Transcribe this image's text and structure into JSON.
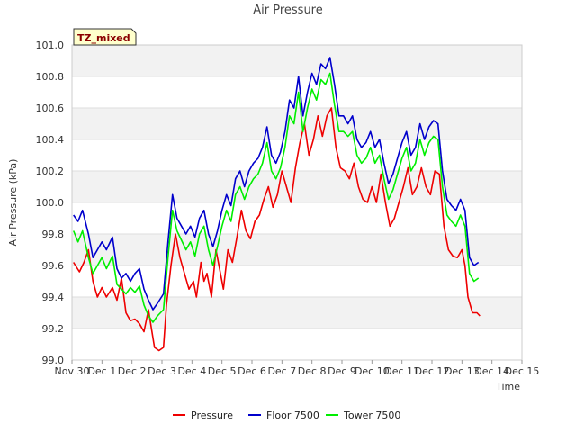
{
  "chart_data": {
    "type": "line",
    "title": "Air Pressure",
    "xlabel": "Time",
    "ylabel": "Air Pressure (kPa)",
    "badge": "TZ_mixed",
    "xlim": [
      0,
      15
    ],
    "ylim": [
      99.0,
      101.0
    ],
    "x_ticks": [
      {
        "v": 0,
        "label": "Nov 30"
      },
      {
        "v": 1,
        "label": "Dec 1"
      },
      {
        "v": 2,
        "label": "Dec 2"
      },
      {
        "v": 3,
        "label": "Dec 3"
      },
      {
        "v": 4,
        "label": "Dec 4"
      },
      {
        "v": 5,
        "label": "Dec 5"
      },
      {
        "v": 6,
        "label": "Dec 6"
      },
      {
        "v": 7,
        "label": "Dec 7"
      },
      {
        "v": 8,
        "label": "Dec 8"
      },
      {
        "v": 9,
        "label": "Dec 9"
      },
      {
        "v": 10,
        "label": "Dec 10"
      },
      {
        "v": 11,
        "label": "Dec 11"
      },
      {
        "v": 12,
        "label": "Dec 12"
      },
      {
        "v": 13,
        "label": "Dec 13"
      },
      {
        "v": 14,
        "label": "Dec 14"
      },
      {
        "v": 15,
        "label": "Dec 15"
      }
    ],
    "y_ticks": [
      {
        "v": 99.0,
        "label": "99.0"
      },
      {
        "v": 99.2,
        "label": "99.2"
      },
      {
        "v": 99.4,
        "label": "99.4"
      },
      {
        "v": 99.6,
        "label": "99.6"
      },
      {
        "v": 99.8,
        "label": "99.8"
      },
      {
        "v": 100.0,
        "label": "100.0"
      },
      {
        "v": 100.2,
        "label": "100.2"
      },
      {
        "v": 100.4,
        "label": "100.4"
      },
      {
        "v": 100.6,
        "label": "100.6"
      },
      {
        "v": 100.8,
        "label": "100.8"
      },
      {
        "v": 101.0,
        "label": "101.0"
      }
    ],
    "legend_position": "bottom",
    "series": [
      {
        "name": "Pressure",
        "color": "#ee0000",
        "points": [
          [
            0.0,
            99.62
          ],
          [
            0.2,
            99.56
          ],
          [
            0.35,
            99.62
          ],
          [
            0.5,
            99.7
          ],
          [
            0.65,
            99.5
          ],
          [
            0.8,
            99.4
          ],
          [
            0.95,
            99.46
          ],
          [
            1.1,
            99.4
          ],
          [
            1.3,
            99.46
          ],
          [
            1.45,
            99.38
          ],
          [
            1.6,
            99.52
          ],
          [
            1.75,
            99.3
          ],
          [
            1.9,
            99.25
          ],
          [
            2.05,
            99.26
          ],
          [
            2.2,
            99.23
          ],
          [
            2.35,
            99.18
          ],
          [
            2.5,
            99.32
          ],
          [
            2.6,
            99.2
          ],
          [
            2.7,
            99.08
          ],
          [
            2.85,
            99.06
          ],
          [
            3.0,
            99.08
          ],
          [
            3.1,
            99.35
          ],
          [
            3.25,
            99.6
          ],
          [
            3.4,
            99.8
          ],
          [
            3.55,
            99.65
          ],
          [
            3.7,
            99.55
          ],
          [
            3.85,
            99.45
          ],
          [
            4.0,
            99.5
          ],
          [
            4.1,
            99.4
          ],
          [
            4.25,
            99.62
          ],
          [
            4.35,
            99.5
          ],
          [
            4.45,
            99.55
          ],
          [
            4.6,
            99.4
          ],
          [
            4.75,
            99.7
          ],
          [
            4.9,
            99.55
          ],
          [
            5.0,
            99.45
          ],
          [
            5.15,
            99.7
          ],
          [
            5.3,
            99.62
          ],
          [
            5.45,
            99.78
          ],
          [
            5.6,
            99.95
          ],
          [
            5.75,
            99.82
          ],
          [
            5.9,
            99.77
          ],
          [
            6.05,
            99.88
          ],
          [
            6.2,
            99.92
          ],
          [
            6.35,
            100.02
          ],
          [
            6.5,
            100.1
          ],
          [
            6.65,
            99.97
          ],
          [
            6.8,
            100.05
          ],
          [
            6.95,
            100.2
          ],
          [
            7.1,
            100.1
          ],
          [
            7.25,
            100.0
          ],
          [
            7.4,
            100.22
          ],
          [
            7.55,
            100.38
          ],
          [
            7.7,
            100.5
          ],
          [
            7.85,
            100.3
          ],
          [
            8.0,
            100.4
          ],
          [
            8.15,
            100.55
          ],
          [
            8.3,
            100.42
          ],
          [
            8.45,
            100.55
          ],
          [
            8.6,
            100.6
          ],
          [
            8.75,
            100.35
          ],
          [
            8.9,
            100.22
          ],
          [
            9.05,
            100.2
          ],
          [
            9.2,
            100.15
          ],
          [
            9.35,
            100.25
          ],
          [
            9.5,
            100.1
          ],
          [
            9.65,
            100.02
          ],
          [
            9.8,
            100.0
          ],
          [
            9.95,
            100.1
          ],
          [
            10.1,
            100.0
          ],
          [
            10.25,
            100.18
          ],
          [
            10.4,
            100.0
          ],
          [
            10.55,
            99.85
          ],
          [
            10.7,
            99.9
          ],
          [
            10.85,
            100.0
          ],
          [
            11.0,
            100.1
          ],
          [
            11.15,
            100.22
          ],
          [
            11.3,
            100.05
          ],
          [
            11.45,
            100.1
          ],
          [
            11.6,
            100.22
          ],
          [
            11.75,
            100.1
          ],
          [
            11.9,
            100.05
          ],
          [
            12.05,
            100.2
          ],
          [
            12.2,
            100.18
          ],
          [
            12.35,
            99.85
          ],
          [
            12.5,
            99.7
          ],
          [
            12.65,
            99.66
          ],
          [
            12.8,
            99.65
          ],
          [
            12.95,
            99.7
          ],
          [
            13.05,
            99.6
          ],
          [
            13.15,
            99.4
          ],
          [
            13.3,
            99.3
          ],
          [
            13.45,
            99.3
          ],
          [
            13.55,
            99.28
          ]
        ]
      },
      {
        "name": "Floor 7500",
        "color": "#0000cc",
        "points": [
          [
            0.0,
            99.92
          ],
          [
            0.15,
            99.88
          ],
          [
            0.3,
            99.95
          ],
          [
            0.5,
            99.8
          ],
          [
            0.65,
            99.65
          ],
          [
            0.8,
            99.7
          ],
          [
            0.95,
            99.75
          ],
          [
            1.1,
            99.7
          ],
          [
            1.3,
            99.78
          ],
          [
            1.45,
            99.58
          ],
          [
            1.6,
            99.52
          ],
          [
            1.75,
            99.55
          ],
          [
            1.9,
            99.5
          ],
          [
            2.05,
            99.55
          ],
          [
            2.2,
            99.58
          ],
          [
            2.35,
            99.45
          ],
          [
            2.5,
            99.38
          ],
          [
            2.65,
            99.32
          ],
          [
            2.8,
            99.36
          ],
          [
            3.0,
            99.42
          ],
          [
            3.15,
            99.75
          ],
          [
            3.3,
            100.05
          ],
          [
            3.45,
            99.9
          ],
          [
            3.6,
            99.85
          ],
          [
            3.75,
            99.8
          ],
          [
            3.9,
            99.85
          ],
          [
            4.05,
            99.78
          ],
          [
            4.2,
            99.9
          ],
          [
            4.35,
            99.95
          ],
          [
            4.5,
            99.8
          ],
          [
            4.65,
            99.72
          ],
          [
            4.8,
            99.82
          ],
          [
            4.95,
            99.95
          ],
          [
            5.1,
            100.05
          ],
          [
            5.25,
            99.98
          ],
          [
            5.4,
            100.15
          ],
          [
            5.55,
            100.2
          ],
          [
            5.7,
            100.1
          ],
          [
            5.85,
            100.2
          ],
          [
            6.0,
            100.25
          ],
          [
            6.15,
            100.28
          ],
          [
            6.3,
            100.35
          ],
          [
            6.45,
            100.48
          ],
          [
            6.6,
            100.3
          ],
          [
            6.75,
            100.25
          ],
          [
            6.9,
            100.32
          ],
          [
            7.05,
            100.45
          ],
          [
            7.2,
            100.65
          ],
          [
            7.35,
            100.6
          ],
          [
            7.5,
            100.8
          ],
          [
            7.65,
            100.55
          ],
          [
            7.8,
            100.7
          ],
          [
            7.95,
            100.82
          ],
          [
            8.1,
            100.75
          ],
          [
            8.25,
            100.88
          ],
          [
            8.4,
            100.85
          ],
          [
            8.55,
            100.92
          ],
          [
            8.7,
            100.75
          ],
          [
            8.85,
            100.55
          ],
          [
            9.0,
            100.55
          ],
          [
            9.15,
            100.5
          ],
          [
            9.3,
            100.55
          ],
          [
            9.45,
            100.4
          ],
          [
            9.6,
            100.35
          ],
          [
            9.75,
            100.38
          ],
          [
            9.9,
            100.45
          ],
          [
            10.05,
            100.35
          ],
          [
            10.2,
            100.4
          ],
          [
            10.35,
            100.25
          ],
          [
            10.5,
            100.12
          ],
          [
            10.65,
            100.18
          ],
          [
            10.8,
            100.28
          ],
          [
            10.95,
            100.38
          ],
          [
            11.1,
            100.45
          ],
          [
            11.25,
            100.3
          ],
          [
            11.4,
            100.35
          ],
          [
            11.55,
            100.5
          ],
          [
            11.7,
            100.4
          ],
          [
            11.85,
            100.48
          ],
          [
            12.0,
            100.52
          ],
          [
            12.15,
            100.5
          ],
          [
            12.3,
            100.2
          ],
          [
            12.45,
            100.02
          ],
          [
            12.6,
            99.98
          ],
          [
            12.75,
            99.95
          ],
          [
            12.9,
            100.02
          ],
          [
            13.05,
            99.95
          ],
          [
            13.2,
            99.65
          ],
          [
            13.35,
            99.6
          ],
          [
            13.5,
            99.62
          ]
        ]
      },
      {
        "name": "Tower 7500",
        "color": "#00ee00",
        "points": [
          [
            0.0,
            99.82
          ],
          [
            0.15,
            99.75
          ],
          [
            0.3,
            99.82
          ],
          [
            0.5,
            99.65
          ],
          [
            0.65,
            99.55
          ],
          [
            0.8,
            99.6
          ],
          [
            0.95,
            99.65
          ],
          [
            1.1,
            99.58
          ],
          [
            1.3,
            99.66
          ],
          [
            1.45,
            99.48
          ],
          [
            1.6,
            99.45
          ],
          [
            1.75,
            99.42
          ],
          [
            1.9,
            99.46
          ],
          [
            2.05,
            99.43
          ],
          [
            2.2,
            99.47
          ],
          [
            2.35,
            99.35
          ],
          [
            2.5,
            99.28
          ],
          [
            2.65,
            99.24
          ],
          [
            2.8,
            99.28
          ],
          [
            3.0,
            99.32
          ],
          [
            3.15,
            99.65
          ],
          [
            3.3,
            99.95
          ],
          [
            3.45,
            99.82
          ],
          [
            3.6,
            99.76
          ],
          [
            3.75,
            99.7
          ],
          [
            3.9,
            99.75
          ],
          [
            4.05,
            99.66
          ],
          [
            4.2,
            99.8
          ],
          [
            4.35,
            99.85
          ],
          [
            4.5,
            99.7
          ],
          [
            4.65,
            99.6
          ],
          [
            4.8,
            99.72
          ],
          [
            4.95,
            99.85
          ],
          [
            5.1,
            99.95
          ],
          [
            5.25,
            99.88
          ],
          [
            5.4,
            100.05
          ],
          [
            5.55,
            100.1
          ],
          [
            5.7,
            100.02
          ],
          [
            5.85,
            100.1
          ],
          [
            6.0,
            100.15
          ],
          [
            6.15,
            100.18
          ],
          [
            6.3,
            100.25
          ],
          [
            6.45,
            100.38
          ],
          [
            6.6,
            100.2
          ],
          [
            6.75,
            100.15
          ],
          [
            6.9,
            100.22
          ],
          [
            7.05,
            100.35
          ],
          [
            7.2,
            100.55
          ],
          [
            7.35,
            100.5
          ],
          [
            7.5,
            100.7
          ],
          [
            7.65,
            100.45
          ],
          [
            7.8,
            100.6
          ],
          [
            7.95,
            100.72
          ],
          [
            8.1,
            100.65
          ],
          [
            8.25,
            100.78
          ],
          [
            8.4,
            100.75
          ],
          [
            8.55,
            100.82
          ],
          [
            8.7,
            100.62
          ],
          [
            8.85,
            100.45
          ],
          [
            9.0,
            100.45
          ],
          [
            9.15,
            100.42
          ],
          [
            9.3,
            100.45
          ],
          [
            9.45,
            100.3
          ],
          [
            9.6,
            100.25
          ],
          [
            9.75,
            100.28
          ],
          [
            9.9,
            100.35
          ],
          [
            10.05,
            100.25
          ],
          [
            10.2,
            100.3
          ],
          [
            10.35,
            100.15
          ],
          [
            10.5,
            100.02
          ],
          [
            10.65,
            100.08
          ],
          [
            10.8,
            100.18
          ],
          [
            10.95,
            100.28
          ],
          [
            11.1,
            100.35
          ],
          [
            11.25,
            100.2
          ],
          [
            11.4,
            100.25
          ],
          [
            11.55,
            100.4
          ],
          [
            11.7,
            100.3
          ],
          [
            11.85,
            100.38
          ],
          [
            12.0,
            100.42
          ],
          [
            12.15,
            100.4
          ],
          [
            12.3,
            100.1
          ],
          [
            12.45,
            99.92
          ],
          [
            12.6,
            99.88
          ],
          [
            12.75,
            99.85
          ],
          [
            12.9,
            99.92
          ],
          [
            13.05,
            99.85
          ],
          [
            13.2,
            99.55
          ],
          [
            13.35,
            99.5
          ],
          [
            13.5,
            99.52
          ]
        ]
      }
    ]
  }
}
